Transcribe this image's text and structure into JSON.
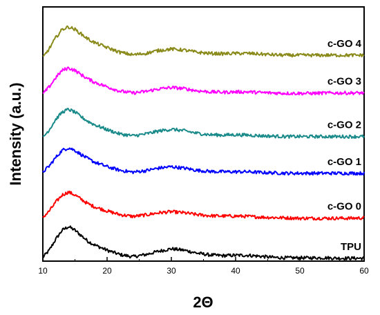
{
  "chart_data": {
    "type": "line",
    "xlabel": "2Θ",
    "ylabel": "Intensity (a.u.)",
    "xlim": [
      10,
      60
    ],
    "x_ticks": [
      10,
      20,
      30,
      40,
      50,
      60
    ],
    "ylim": [
      0,
      7
    ],
    "y_ticks_labeled": false,
    "grid": false,
    "legend": "inline labels at right",
    "series": [
      {
        "name": "TPU",
        "color": "#000000",
        "x": [
          10,
          11,
          12,
          13,
          14,
          15,
          16,
          17,
          18,
          20,
          22,
          24,
          26,
          28,
          30,
          32,
          34,
          36,
          38,
          40,
          42,
          44,
          46,
          48,
          50,
          52,
          54,
          56,
          58,
          60
        ],
        "y": [
          0.1,
          0.3,
          0.6,
          0.85,
          0.95,
          0.85,
          0.7,
          0.55,
          0.45,
          0.3,
          0.18,
          0.12,
          0.18,
          0.27,
          0.34,
          0.3,
          0.22,
          0.17,
          0.15,
          0.16,
          0.16,
          0.13,
          0.1,
          0.09,
          0.09,
          0.09,
          0.09,
          0.08,
          0.08,
          0.08
        ]
      },
      {
        "name": "c-GO 0",
        "color": "#ff0000",
        "x": [
          10,
          11,
          12,
          13,
          14,
          15,
          16,
          17,
          18,
          20,
          22,
          24,
          26,
          28,
          30,
          32,
          34,
          36,
          38,
          40,
          42,
          44,
          46,
          48,
          50,
          52,
          54,
          56,
          58,
          60
        ],
        "y": [
          1.2,
          1.38,
          1.62,
          1.82,
          1.9,
          1.82,
          1.7,
          1.58,
          1.5,
          1.38,
          1.28,
          1.23,
          1.27,
          1.33,
          1.36,
          1.33,
          1.28,
          1.25,
          1.24,
          1.24,
          1.23,
          1.21,
          1.2,
          1.19,
          1.18,
          1.18,
          1.18,
          1.18,
          1.18,
          1.19
        ]
      },
      {
        "name": "c-GO 1",
        "color": "#0000ff",
        "x": [
          10,
          11,
          12,
          13,
          14,
          15,
          16,
          17,
          18,
          20,
          22,
          24,
          26,
          28,
          30,
          32,
          34,
          36,
          38,
          40,
          42,
          44,
          46,
          48,
          50,
          52,
          54,
          56,
          58,
          60
        ],
        "y": [
          2.45,
          2.62,
          2.85,
          3.05,
          3.12,
          3.05,
          2.93,
          2.82,
          2.73,
          2.6,
          2.5,
          2.45,
          2.49,
          2.56,
          2.6,
          2.56,
          2.5,
          2.47,
          2.46,
          2.46,
          2.46,
          2.44,
          2.43,
          2.42,
          2.42,
          2.42,
          2.42,
          2.42,
          2.42,
          2.42
        ]
      },
      {
        "name": "c-GO 2",
        "color": "#1a8a8a",
        "x": [
          10,
          11,
          12,
          13,
          14,
          15,
          16,
          17,
          18,
          20,
          22,
          24,
          26,
          28,
          30,
          32,
          34,
          36,
          38,
          40,
          42,
          44,
          46,
          48,
          50,
          52,
          54,
          56,
          58,
          60
        ],
        "y": [
          3.4,
          3.62,
          3.9,
          4.1,
          4.18,
          4.1,
          3.97,
          3.85,
          3.76,
          3.62,
          3.5,
          3.45,
          3.5,
          3.58,
          3.63,
          3.59,
          3.52,
          3.48,
          3.47,
          3.48,
          3.47,
          3.45,
          3.44,
          3.43,
          3.43,
          3.43,
          3.43,
          3.43,
          3.43,
          3.43
        ]
      },
      {
        "name": "c-GO 3",
        "color": "#ff00ff",
        "x": [
          10,
          11,
          12,
          13,
          14,
          15,
          16,
          17,
          18,
          20,
          22,
          24,
          26,
          28,
          30,
          32,
          34,
          36,
          38,
          40,
          42,
          44,
          46,
          48,
          50,
          52,
          54,
          56,
          58,
          60
        ],
        "y": [
          4.6,
          4.8,
          5.05,
          5.25,
          5.32,
          5.25,
          5.13,
          5.02,
          4.93,
          4.8,
          4.68,
          4.63,
          4.67,
          4.74,
          4.78,
          4.75,
          4.69,
          4.66,
          4.65,
          4.66,
          4.66,
          4.64,
          4.63,
          4.62,
          4.62,
          4.62,
          4.63,
          4.63,
          4.63,
          4.63
        ]
      },
      {
        "name": "c-GO 4",
        "color": "#8a8a1a",
        "x": [
          10,
          11,
          12,
          13,
          14,
          15,
          16,
          17,
          18,
          20,
          22,
          24,
          26,
          28,
          30,
          32,
          34,
          36,
          38,
          40,
          42,
          44,
          46,
          48,
          50,
          52,
          54,
          56,
          58,
          60
        ],
        "y": [
          5.6,
          5.85,
          6.15,
          6.38,
          6.45,
          6.38,
          6.25,
          6.12,
          6.02,
          5.88,
          5.75,
          5.68,
          5.72,
          5.8,
          5.84,
          5.81,
          5.75,
          5.72,
          5.71,
          5.72,
          5.72,
          5.7,
          5.68,
          5.67,
          5.67,
          5.67,
          5.67,
          5.67,
          5.67,
          5.67
        ]
      }
    ]
  }
}
